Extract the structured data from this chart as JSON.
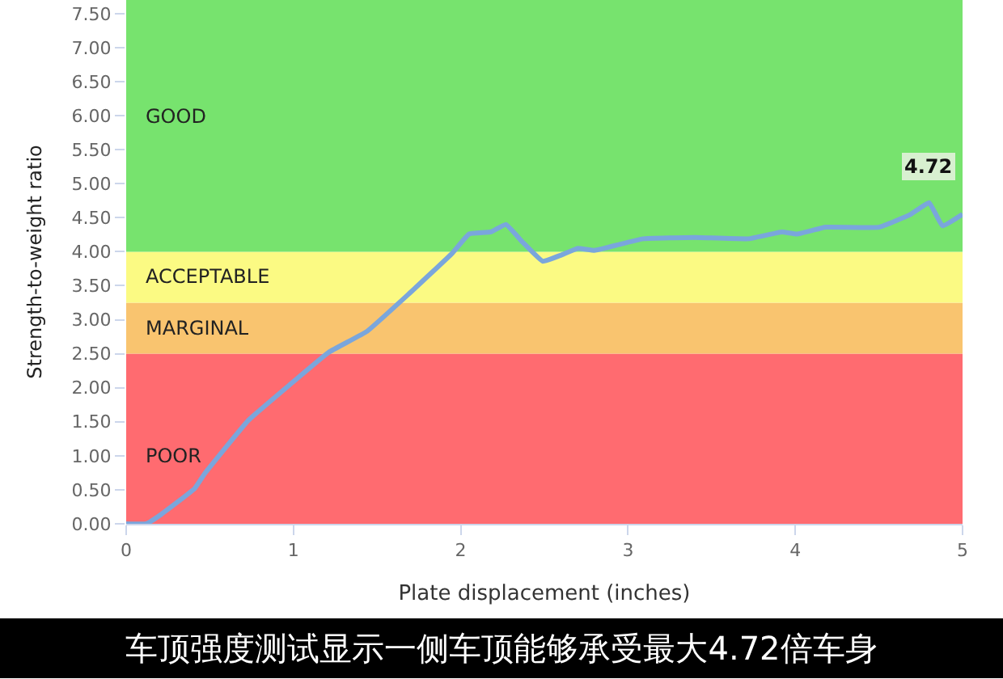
{
  "chart_data": {
    "type": "line",
    "xlabel": "Plate displacement (inches)",
    "ylabel": "Strength-to-weight ratio",
    "x": [
      0,
      0.12,
      0.21,
      0.41,
      0.47,
      0.73,
      0.99,
      1.21,
      1.44,
      1.69,
      1.95,
      2.05,
      2.18,
      2.27,
      2.37,
      2.49,
      2.6,
      2.7,
      2.8,
      3.09,
      3.4,
      3.72,
      3.92,
      4.01,
      4.18,
      4.5,
      4.69,
      4.8,
      4.88,
      5.0
    ],
    "series": [
      {
        "color": "#7aa6dc",
        "values": [
          0,
          0,
          0.14,
          0.52,
          0.74,
          1.52,
          2.07,
          2.52,
          2.83,
          3.38,
          3.98,
          4.26,
          4.29,
          4.4,
          4.14,
          3.86,
          3.95,
          4.05,
          4.02,
          4.19,
          4.21,
          4.19,
          4.29,
          4.26,
          4.36,
          4.36,
          4.55,
          4.72,
          4.38,
          4.55
        ]
      }
    ],
    "xlim": [
      0,
      5
    ],
    "xticks": [
      0,
      1,
      2,
      3,
      4,
      5
    ],
    "ylim": [
      0,
      7.7
    ],
    "yticks": [
      {
        "value": 0,
        "label": "0.00"
      },
      {
        "value": 0.5,
        "label": "0.50"
      },
      {
        "value": 1,
        "label": "1.00"
      },
      {
        "value": 1.5,
        "label": "1.50"
      },
      {
        "value": 2,
        "label": "2.00"
      },
      {
        "value": 2.5,
        "label": "2.50"
      },
      {
        "value": 3,
        "label": "3.00"
      },
      {
        "value": 3.5,
        "label": "3.50"
      },
      {
        "value": 4,
        "label": "4.00"
      },
      {
        "value": 4.5,
        "label": "4.50"
      },
      {
        "value": 5,
        "label": "5.00"
      },
      {
        "value": 5.5,
        "label": "5.50"
      },
      {
        "value": 6,
        "label": "6.00"
      },
      {
        "value": 6.5,
        "label": "6.50"
      },
      {
        "value": 7,
        "label": "7.00"
      },
      {
        "value": 7.5,
        "label": "7.50"
      }
    ],
    "bands": [
      {
        "axis": "y",
        "from": 0,
        "to": 2.5,
        "label": "POOR",
        "color": "#ff6b70"
      },
      {
        "axis": "y",
        "from": 2.5,
        "to": 3.25,
        "label": "MARGINAL",
        "color": "#f9c46f"
      },
      {
        "axis": "y",
        "from": 3.25,
        "to": 4,
        "label": "ACCEPTABLE",
        "color": "#fbfa83"
      },
      {
        "axis": "y",
        "from": 4,
        "to": 7.7,
        "label": "GOOD",
        "color": "#77e36e"
      }
    ],
    "annotations": [
      {
        "text": "4.72",
        "x": 4.8,
        "y": 4.72
      },
      "车顶强度测试显示一侧车顶能够承受最大4.72倍车身"
    ],
    "grid": false,
    "marker": "none",
    "line_style": "solid"
  }
}
